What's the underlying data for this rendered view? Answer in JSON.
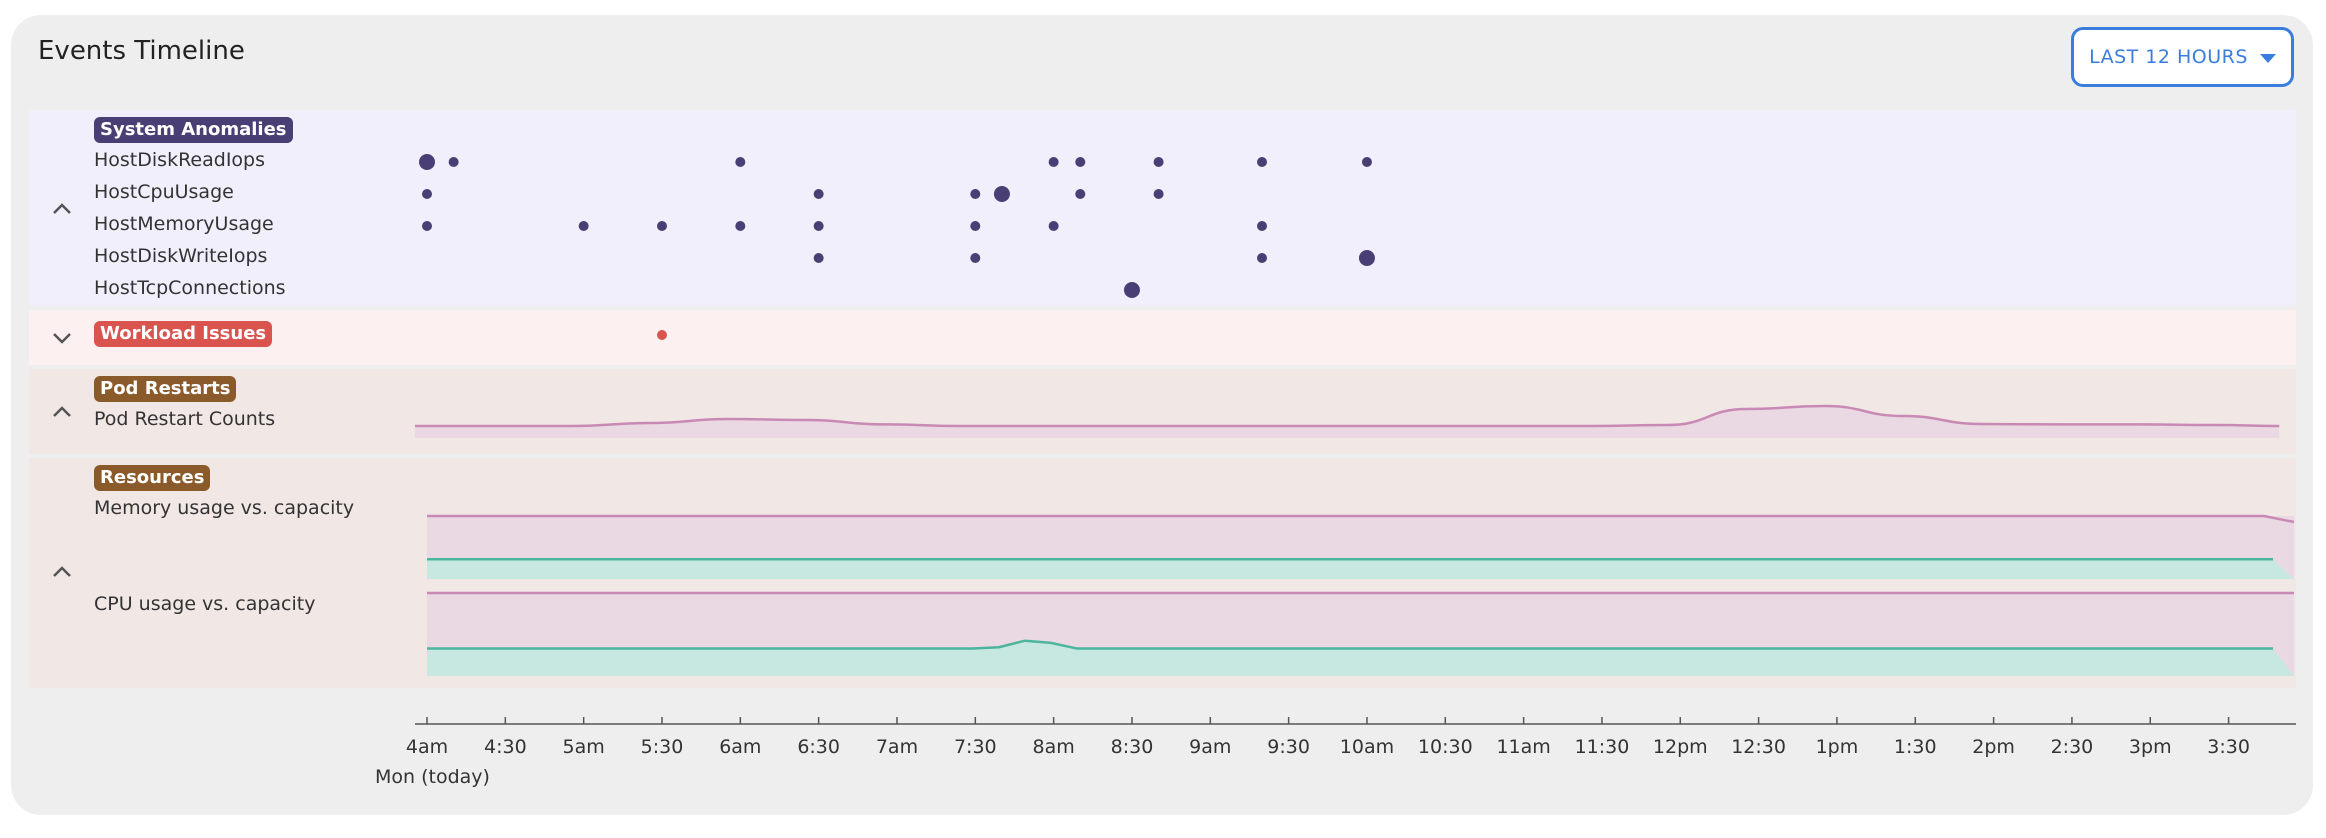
{
  "header": {
    "title": "Events Timeline",
    "time_range_label": "LAST 12 HOURS"
  },
  "sections": {
    "anomalies": {
      "badge": "System Anomalies",
      "badge_color": "#4a3f75",
      "rows": [
        "HostDiskReadIops",
        "HostCpuUsage",
        "HostMemoryUsage",
        "HostDiskWriteIops",
        "HostTcpConnections"
      ]
    },
    "workload": {
      "badge": "Workload Issues",
      "badge_color": "#d9534f"
    },
    "restarts": {
      "badge": "Pod Restarts",
      "badge_color": "#8a5a2b",
      "rows": [
        "Pod Restart Counts"
      ]
    },
    "resources": {
      "badge": "Resources",
      "badge_color": "#8a5a2b",
      "rows": [
        "Memory usage vs. capacity",
        "CPU usage vs. capacity"
      ]
    }
  },
  "axis": {
    "ticks": [
      "4am",
      "4:30",
      "5am",
      "5:30",
      "6am",
      "6:30",
      "7am",
      "7:30",
      "8am",
      "8:30",
      "9am",
      "9:30",
      "10am",
      "10:30",
      "11am",
      "11:30",
      "12pm",
      "12:30",
      "1pm",
      "1:30",
      "2pm",
      "2:30",
      "3pm",
      "3:30"
    ],
    "date_label": "Mon (today)"
  },
  "chart_data": {
    "type": "scatter",
    "x_unit": "hours since 4am",
    "anomaly_events": [
      {
        "series": "HostDiskReadIops",
        "points": [
          [
            0,
            "large"
          ],
          [
            0.17,
            "small"
          ],
          [
            2,
            "small"
          ],
          [
            4,
            "small"
          ],
          [
            4.17,
            "small"
          ],
          [
            4.67,
            "small"
          ],
          [
            5.33,
            "small"
          ],
          [
            6,
            "small"
          ]
        ]
      },
      {
        "series": "HostCpuUsage",
        "points": [
          [
            0,
            "small"
          ],
          [
            2.5,
            "small"
          ],
          [
            3.5,
            "small"
          ],
          [
            3.67,
            "large"
          ],
          [
            4.17,
            "small"
          ],
          [
            4.67,
            "small"
          ]
        ]
      },
      {
        "series": "HostMemoryUsage",
        "points": [
          [
            0,
            "small"
          ],
          [
            1,
            "small"
          ],
          [
            1.5,
            "small"
          ],
          [
            2,
            "small"
          ],
          [
            2.5,
            "small"
          ],
          [
            3.5,
            "small"
          ],
          [
            4,
            "small"
          ],
          [
            5.33,
            "small"
          ]
        ]
      },
      {
        "series": "HostDiskWriteIops",
        "points": [
          [
            2.5,
            "small"
          ],
          [
            3.5,
            "small"
          ],
          [
            5.33,
            "small"
          ],
          [
            6,
            "large"
          ]
        ]
      },
      {
        "series": "HostTcpConnections",
        "points": [
          [
            4.5,
            "large"
          ]
        ]
      }
    ],
    "workload_events": [
      [
        1.5,
        "small"
      ]
    ],
    "pod_restart_counts": {
      "x": [
        0,
        0.5,
        1,
        1.5,
        2,
        2.5,
        3,
        3.5,
        4,
        4.5,
        5,
        5.5,
        6,
        6.5,
        7,
        7.5,
        8,
        8.5,
        9,
        9.5,
        10,
        10.5,
        11,
        11.5,
        11.9
      ],
      "values": [
        0,
        0,
        0,
        0.15,
        0.35,
        0.3,
        0.08,
        0,
        0,
        0,
        0,
        0,
        0,
        0,
        0,
        0,
        0.05,
        0.85,
        1,
        0.5,
        0.1,
        0.08,
        0.08,
        0.05,
        0
      ]
    },
    "memory_usage": {
      "capacity": 1.0,
      "usage": 0.32
    },
    "cpu_usage": {
      "capacity": 1.0,
      "usage": 0.34,
      "spike_at": 4.0
    },
    "colors": {
      "anomaly_dot": "#4a3f75",
      "workload_dot": "#d9534f",
      "capacity_line": "#c88ab5",
      "capacity_fill": "#ead8e2",
      "usage_line": "#4bb59d",
      "usage_fill": "#c6e8e1"
    }
  }
}
